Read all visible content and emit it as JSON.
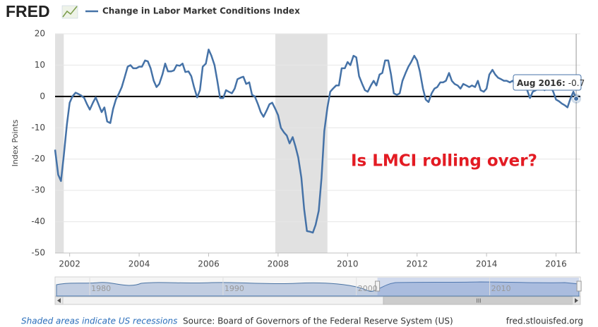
{
  "chart_data": {
    "type": "line",
    "logo": "FRED",
    "y_label": "Index Points",
    "annotation": "Is LMCI rolling over?",
    "recession_note": "Shaded areas indicate US recessions",
    "source": "Source: Board of Governors of the Federal Reserve System (US)",
    "site": "fred.stlouisfed.org",
    "xlim": [
      2001.58,
      2016.7
    ],
    "xticks": [
      2002,
      2004,
      2006,
      2008,
      2010,
      2012,
      2014,
      2016
    ],
    "ylim": [
      -50,
      20
    ],
    "yticks": [
      20,
      10,
      0,
      -10,
      -20,
      -30,
      -40,
      -50
    ],
    "grid": true,
    "recessions": [
      [
        2001.17,
        2001.83
      ],
      [
        2007.92,
        2009.42
      ]
    ],
    "x": [
      2001.58,
      2001.67,
      2001.75,
      2001.83,
      2001.92,
      2002.0,
      2002.08,
      2002.17,
      2002.25,
      2002.33,
      2002.42,
      2002.5,
      2002.58,
      2002.67,
      2002.75,
      2002.83,
      2002.92,
      2003.0,
      2003.08,
      2003.17,
      2003.25,
      2003.33,
      2003.42,
      2003.5,
      2003.58,
      2003.67,
      2003.75,
      2003.83,
      2003.92,
      2004.0,
      2004.08,
      2004.17,
      2004.25,
      2004.33,
      2004.42,
      2004.5,
      2004.58,
      2004.67,
      2004.75,
      2004.83,
      2004.92,
      2005.0,
      2005.08,
      2005.17,
      2005.25,
      2005.33,
      2005.42,
      2005.5,
      2005.58,
      2005.67,
      2005.75,
      2005.83,
      2005.92,
      2006.0,
      2006.08,
      2006.17,
      2006.25,
      2006.33,
      2006.42,
      2006.5,
      2006.58,
      2006.67,
      2006.75,
      2006.83,
      2006.92,
      2007.0,
      2007.08,
      2007.17,
      2007.25,
      2007.33,
      2007.42,
      2007.5,
      2007.58,
      2007.67,
      2007.75,
      2007.83,
      2007.92,
      2008.0,
      2008.08,
      2008.17,
      2008.25,
      2008.33,
      2008.42,
      2008.5,
      2008.58,
      2008.67,
      2008.75,
      2008.83,
      2008.92,
      2009.0,
      2009.08,
      2009.17,
      2009.25,
      2009.33,
      2009.42,
      2009.5,
      2009.58,
      2009.67,
      2009.75,
      2009.83,
      2009.92,
      2010.0,
      2010.08,
      2010.17,
      2010.25,
      2010.33,
      2010.42,
      2010.5,
      2010.58,
      2010.67,
      2010.75,
      2010.83,
      2010.92,
      2011.0,
      2011.08,
      2011.17,
      2011.25,
      2011.33,
      2011.42,
      2011.5,
      2011.58,
      2011.67,
      2011.75,
      2011.83,
      2011.92,
      2012.0,
      2012.08,
      2012.17,
      2012.25,
      2012.33,
      2012.42,
      2012.5,
      2012.58,
      2012.67,
      2012.75,
      2012.83,
      2012.92,
      2013.0,
      2013.08,
      2013.17,
      2013.25,
      2013.33,
      2013.42,
      2013.5,
      2013.58,
      2013.67,
      2013.75,
      2013.83,
      2013.92,
      2014.0,
      2014.08,
      2014.17,
      2014.25,
      2014.33,
      2014.42,
      2014.5,
      2014.58,
      2014.67,
      2014.75,
      2014.83,
      2014.92,
      2015.0,
      2015.08,
      2015.17,
      2015.25,
      2015.33,
      2015.42,
      2015.5,
      2015.58,
      2015.67,
      2015.75,
      2015.83,
      2015.92,
      2016.0,
      2016.08,
      2016.17,
      2016.25,
      2016.33,
      2016.42,
      2016.5,
      2016.58
    ],
    "series": [
      {
        "name": "Change in Labor Market Conditions Index",
        "color": "#4572a7",
        "values": [
          -17,
          -25,
          -27,
          -19,
          -9,
          -2,
          0,
          1.2,
          0.8,
          0.3,
          -0.5,
          -2.5,
          -4.2,
          -2,
          -0.3,
          -2.5,
          -5,
          -3.5,
          -8,
          -8.5,
          -4,
          -1,
          1,
          3,
          6,
          9.5,
          10,
          9,
          9,
          9.5,
          9.5,
          11.5,
          11.2,
          9,
          5,
          3,
          4,
          7,
          10.5,
          8,
          8,
          8.3,
          10,
          9.8,
          10.5,
          7.8,
          8,
          6.5,
          3,
          -0.3,
          2,
          9.5,
          10.5,
          15,
          13,
          10,
          5,
          -0.5,
          -0.5,
          2,
          1.5,
          1,
          2.5,
          5.5,
          6,
          6.3,
          4,
          4.5,
          0.5,
          0,
          -2.5,
          -5,
          -6.5,
          -4.5,
          -2.5,
          -2,
          -4,
          -6,
          -10,
          -11.5,
          -12.5,
          -15,
          -13,
          -16,
          -19.5,
          -26,
          -36,
          -43,
          -43.2,
          -43.5,
          -41,
          -36.5,
          -26,
          -11,
          -3.5,
          1.5,
          2.5,
          3.5,
          3.5,
          9,
          9,
          11,
          10,
          13,
          12.5,
          6.5,
          4,
          2,
          1.5,
          3.5,
          5,
          3.5,
          7,
          7.5,
          11.5,
          11.5,
          7,
          1,
          0.5,
          1,
          5,
          7.5,
          9.5,
          11,
          13,
          11.5,
          8,
          2.5,
          -1,
          -1.8,
          1,
          2.5,
          3,
          4.5,
          4.5,
          5,
          7.5,
          5,
          4,
          3.5,
          2.5,
          4,
          3.5,
          3,
          3.5,
          3,
          5,
          2,
          1.5,
          2.5,
          7,
          8.5,
          7,
          6,
          5.5,
          5,
          5,
          4.5,
          5,
          4,
          4,
          3.5,
          3.5,
          2,
          -0.5,
          1.5,
          2,
          2.5,
          3,
          2,
          3,
          3.5,
          1.5,
          -1,
          -1.5,
          -2.3,
          -2.8,
          -3.5,
          -0.5,
          1.5,
          -0.7
        ]
      }
    ],
    "tooltip": {
      "label": "Aug 2016:"
    },
    "navigator": {
      "xlim": [
        1977.4,
        2016.8
      ],
      "xticks": [
        1980,
        1990,
        2000,
        2010
      ]
    }
  }
}
